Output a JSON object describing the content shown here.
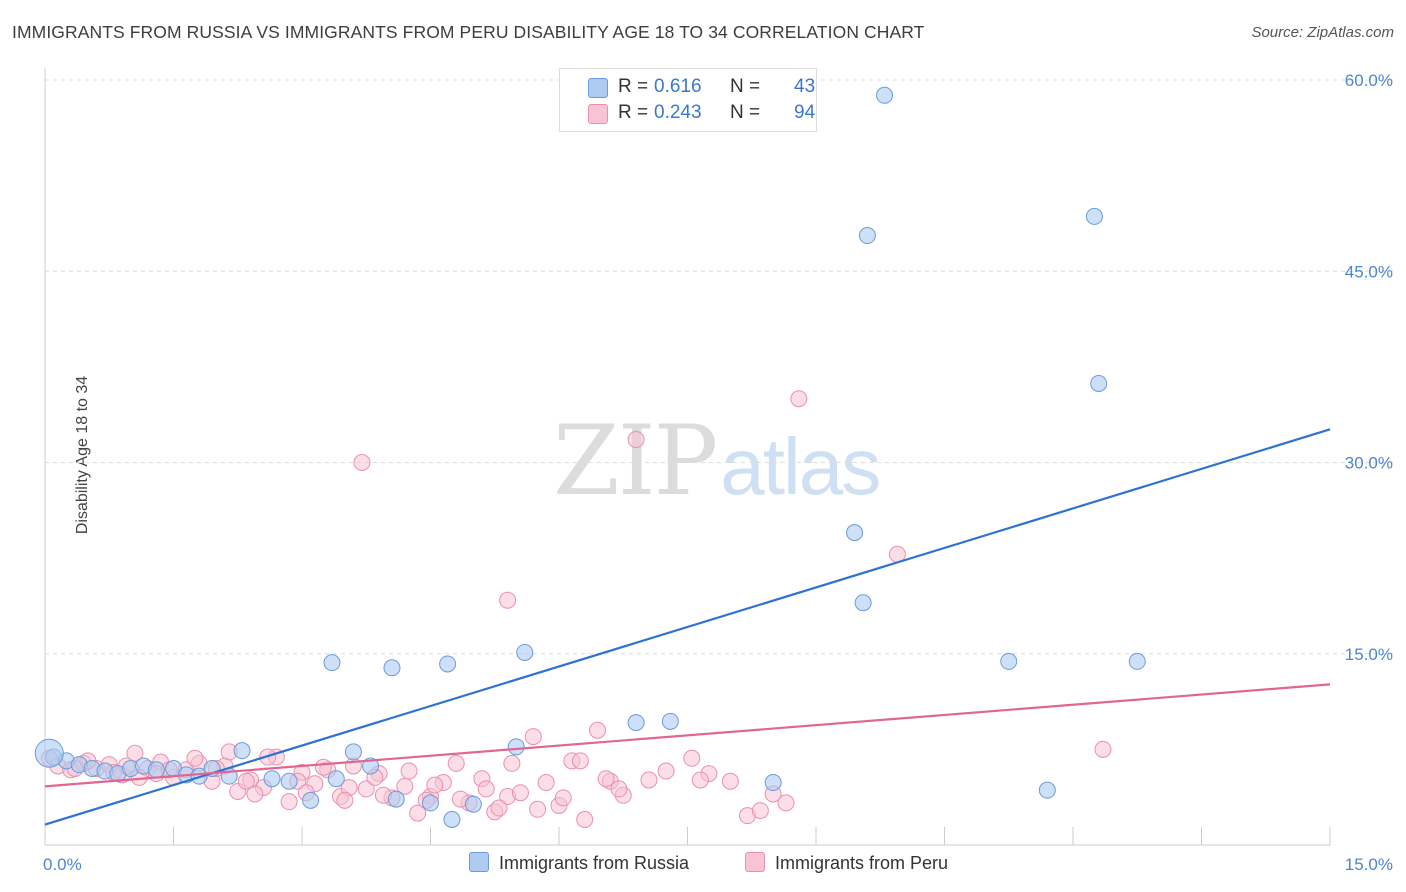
{
  "title": "IMMIGRANTS FROM RUSSIA VS IMMIGRANTS FROM PERU DISABILITY AGE 18 TO 34 CORRELATION CHART",
  "source": "Source: ZipAtlas.com",
  "watermark": {
    "zip": "ZIP",
    "atlas": "atlas"
  },
  "legend": {
    "russia": {
      "r_label": "R =",
      "r_value": "0.616",
      "n_label": "N =",
      "n_value": "43"
    },
    "peru": {
      "r_label": "R =",
      "r_value": "0.243",
      "n_label": "N =",
      "n_value": "94"
    }
  },
  "bottom_legend": {
    "russia": "Immigrants from Russia",
    "peru": "Immigrants from Peru"
  },
  "colors": {
    "russia_fill": "#aecbf1",
    "russia_stroke": "#6b9bd8",
    "russia_line": "#2f73d0",
    "peru_fill": "#f8c3d4",
    "peru_stroke": "#ec8fae",
    "peru_line": "#e0678f",
    "tick_label": "#4a86d4",
    "grid": "#dddddd"
  },
  "chart_data": {
    "type": "scatter",
    "title": "IMMIGRANTS FROM RUSSIA VS IMMIGRANTS FROM PERU DISABILITY AGE 18 TO 34 CORRELATION CHART",
    "xlabel": "",
    "ylabel": "Disability Age 18 to 34",
    "xlim": [
      0,
      15
    ],
    "ylim": [
      0,
      60
    ],
    "x_tick_labels": [
      "0.0%",
      "15.0%"
    ],
    "y_ticks": [
      15,
      30,
      45,
      60
    ],
    "y_tick_labels": [
      "15.0%",
      "30.0%",
      "45.0%",
      "60.0%"
    ],
    "grid": true,
    "legend_position": "top-center",
    "series": [
      {
        "name": "Immigrants from Russia",
        "points": [
          [
            0.1,
            6.9
          ],
          [
            0.25,
            6.6
          ],
          [
            0.4,
            6.3
          ],
          [
            0.55,
            6.0
          ],
          [
            0.7,
            5.8
          ],
          [
            0.85,
            5.6
          ],
          [
            1.0,
            6.0
          ],
          [
            1.15,
            6.2
          ],
          [
            1.3,
            5.9
          ],
          [
            1.5,
            6.0
          ],
          [
            1.65,
            5.5
          ],
          [
            1.8,
            5.4
          ],
          [
            1.95,
            6.0
          ],
          [
            2.15,
            5.4
          ],
          [
            2.3,
            7.4
          ],
          [
            2.65,
            5.2
          ],
          [
            2.85,
            5.0
          ],
          [
            3.1,
            3.5
          ],
          [
            3.4,
            5.2
          ],
          [
            3.6,
            7.3
          ],
          [
            3.8,
            6.2
          ],
          [
            4.1,
            3.6
          ],
          [
            4.5,
            3.3
          ],
          [
            4.75,
            2.0
          ],
          [
            5.0,
            3.2
          ],
          [
            3.35,
            14.3
          ],
          [
            4.05,
            13.9
          ],
          [
            4.7,
            14.2
          ],
          [
            5.6,
            15.1
          ],
          [
            5.5,
            7.7
          ],
          [
            6.9,
            9.6
          ],
          [
            7.3,
            9.7
          ],
          [
            8.5,
            4.9
          ],
          [
            9.45,
            24.5
          ],
          [
            9.55,
            19.0
          ],
          [
            9.6,
            47.8
          ],
          [
            9.8,
            58.8
          ],
          [
            11.25,
            14.4
          ],
          [
            12.25,
            49.3
          ],
          [
            12.3,
            36.2
          ],
          [
            12.75,
            14.4
          ],
          [
            11.7,
            4.3
          ],
          [
            0.05,
            7.2
          ]
        ]
      },
      {
        "name": "Immigrants from Peru",
        "points": [
          [
            0.05,
            6.8
          ],
          [
            0.15,
            6.2
          ],
          [
            0.3,
            5.9
          ],
          [
            0.45,
            6.4
          ],
          [
            0.6,
            6.0
          ],
          [
            0.75,
            6.3
          ],
          [
            0.9,
            5.5
          ],
          [
            1.05,
            7.2
          ],
          [
            1.2,
            6.0
          ],
          [
            1.35,
            6.5
          ],
          [
            1.5,
            5.3
          ],
          [
            1.65,
            5.9
          ],
          [
            1.8,
            6.4
          ],
          [
            1.95,
            5.0
          ],
          [
            2.1,
            6.2
          ],
          [
            2.25,
            4.2
          ],
          [
            2.4,
            5.1
          ],
          [
            2.55,
            4.5
          ],
          [
            2.7,
            6.9
          ],
          [
            2.85,
            3.4
          ],
          [
            3.0,
            5.7
          ],
          [
            3.15,
            4.8
          ],
          [
            3.3,
            5.9
          ],
          [
            3.45,
            3.8
          ],
          [
            3.6,
            6.2
          ],
          [
            3.75,
            4.4
          ],
          [
            3.9,
            5.6
          ],
          [
            4.05,
            3.7
          ],
          [
            4.2,
            4.6
          ],
          [
            4.35,
            2.5
          ],
          [
            4.5,
            3.8
          ],
          [
            4.65,
            4.9
          ],
          [
            4.8,
            6.4
          ],
          [
            4.95,
            3.3
          ],
          [
            5.1,
            5.2
          ],
          [
            5.25,
            2.6
          ],
          [
            5.4,
            3.8
          ],
          [
            5.55,
            4.1
          ],
          [
            5.7,
            8.5
          ],
          [
            5.85,
            4.9
          ],
          [
            6.0,
            3.1
          ],
          [
            6.15,
            6.6
          ],
          [
            6.3,
            2.0
          ],
          [
            6.45,
            9.0
          ],
          [
            6.6,
            5.0
          ],
          [
            6.75,
            3.9
          ],
          [
            6.9,
            31.8
          ],
          [
            7.05,
            5.1
          ],
          [
            7.55,
            6.8
          ],
          [
            8.0,
            5.0
          ],
          [
            8.2,
            2.3
          ],
          [
            8.5,
            4.0
          ],
          [
            8.65,
            3.3
          ],
          [
            8.8,
            35.0
          ],
          [
            9.95,
            22.8
          ],
          [
            12.35,
            7.5
          ],
          [
            3.7,
            30.0
          ],
          [
            5.4,
            19.2
          ],
          [
            2.15,
            7.3
          ],
          [
            1.75,
            6.8
          ],
          [
            0.95,
            6.2
          ],
          [
            0.5,
            6.6
          ],
          [
            1.3,
            5.6
          ],
          [
            2.0,
            6.0
          ],
          [
            2.45,
            4.0
          ],
          [
            2.95,
            5.0
          ],
          [
            3.25,
            6.1
          ],
          [
            3.55,
            4.5
          ],
          [
            3.85,
            5.3
          ],
          [
            4.25,
            5.8
          ],
          [
            4.55,
            4.7
          ],
          [
            4.85,
            3.6
          ],
          [
            5.15,
            4.4
          ],
          [
            5.45,
            6.4
          ],
          [
            5.75,
            2.8
          ],
          [
            6.05,
            3.7
          ],
          [
            6.25,
            6.6
          ],
          [
            6.55,
            5.2
          ],
          [
            7.25,
            5.8
          ],
          [
            7.75,
            5.6
          ],
          [
            2.6,
            6.9
          ],
          [
            3.05,
            4.1
          ],
          [
            3.95,
            3.9
          ],
          [
            4.45,
            3.5
          ],
          [
            1.45,
            5.9
          ],
          [
            0.8,
            5.7
          ],
          [
            1.1,
            5.3
          ],
          [
            2.35,
            5.0
          ],
          [
            3.5,
            3.5
          ],
          [
            5.3,
            2.9
          ],
          [
            6.7,
            4.4
          ],
          [
            7.65,
            5.1
          ],
          [
            8.35,
            2.7
          ],
          [
            0.35,
            6.0
          ]
        ]
      }
    ],
    "trend_lines": [
      {
        "series": "Immigrants from Russia",
        "x": [
          0,
          15
        ],
        "y": [
          1.6,
          32.6
        ]
      },
      {
        "series": "Immigrants from Peru",
        "x": [
          0,
          15
        ],
        "y": [
          4.6,
          12.6
        ]
      }
    ]
  }
}
